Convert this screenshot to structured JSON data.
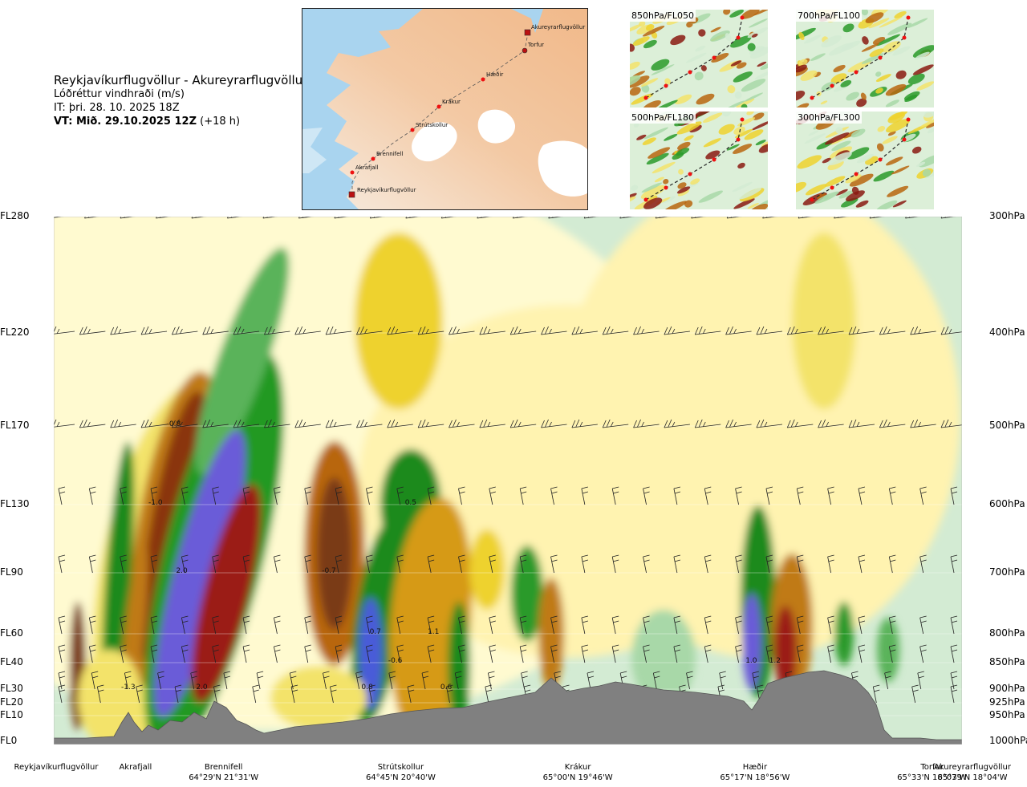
{
  "header": {
    "route": "Reykjavíkurflugvöllur - Akureyrarflugvöllur",
    "quantity": "Lóðréttur vindhraði (m/s)",
    "issue_time": "IT: þri. 28. 10. 2025 18Z",
    "valid_label": "VT: Mið. 29.10.2025 12Z",
    "valid_offset": "(+18 h)"
  },
  "map": {
    "points": [
      {
        "name": "Akureyrarflugvöllur"
      },
      {
        "name": "Torfur"
      },
      {
        "name": "Hæðir"
      },
      {
        "name": "Krákur"
      },
      {
        "name": "Strútskollur"
      },
      {
        "name": "Brennifell"
      },
      {
        "name": "Akrafjall"
      },
      {
        "name": "Reykjavíkurflugvöllur"
      }
    ]
  },
  "thumbnails": [
    {
      "label": "850hPa/FL050"
    },
    {
      "label": "700hPa/FL100"
    },
    {
      "label": "500hPa/FL180"
    },
    {
      "label": "300hPa/FL300"
    }
  ],
  "chart_data": {
    "type": "heatmap",
    "variable": "vertical wind speed",
    "unit": "m/s",
    "levels_left": [
      {
        "label": "FL280",
        "hpa": 300
      },
      {
        "label": "FL220",
        "hpa": 400
      },
      {
        "label": "FL170",
        "hpa": 500
      },
      {
        "label": "FL130",
        "hpa": 600
      },
      {
        "label": "FL90",
        "hpa": 700
      },
      {
        "label": "FL60",
        "hpa": 800
      },
      {
        "label": "FL40",
        "hpa": 850
      },
      {
        "label": "FL30",
        "hpa": 900
      },
      {
        "label": "FL20",
        "hpa": 925
      },
      {
        "label": "FL10",
        "hpa": 950
      },
      {
        "label": "FL0",
        "hpa": 1000
      }
    ],
    "levels_right": [
      "300hPa",
      "400hPa",
      "500hPa",
      "600hPa",
      "700hPa",
      "800hPa",
      "850hPa",
      "900hPa",
      "925hPa",
      "950hPa",
      "1000hPa"
    ],
    "ylim_hpa": [
      1000,
      300
    ],
    "xlim_route_fraction": [
      0,
      1
    ],
    "locations": [
      {
        "name": "Reykjavíkurflugvöllur",
        "coord": "",
        "x": -0.04
      },
      {
        "name": "Akrafjall",
        "coord": "",
        "x": 0.09
      },
      {
        "name": "Brennifell",
        "coord": "64°29'N 21°31'W",
        "x": 0.187
      },
      {
        "name": "Strútskollur",
        "coord": "64°45'N 20°40'W",
        "x": 0.382
      },
      {
        "name": "Krákur",
        "coord": "65°00'N 19°46'W",
        "x": 0.577
      },
      {
        "name": "Hæðir",
        "coord": "65°17'N 18°56'W",
        "x": 0.772
      },
      {
        "name": "Torfur",
        "coord": "65°33'N 18°07'W",
        "x": 0.967
      },
      {
        "name": "Akureyrarflugvöllur",
        "coord": "65°39'N 18°04'W",
        "x": 1.03
      }
    ],
    "contour_labels": [
      {
        "text": "-0.8",
        "x": 0.132,
        "hpa": 500
      },
      {
        "text": "-1.0",
        "x": 0.112,
        "hpa": 600
      },
      {
        "text": "2.0",
        "x": 0.141,
        "hpa": 700
      },
      {
        "text": "-1.3",
        "x": 0.082,
        "hpa": 900
      },
      {
        "text": "2.0",
        "x": 0.163,
        "hpa": 900
      },
      {
        "text": "-0.7",
        "x": 0.303,
        "hpa": 700
      },
      {
        "text": "0.5",
        "x": 0.393,
        "hpa": 600
      },
      {
        "text": "0.7",
        "x": 0.354,
        "hpa": 800
      },
      {
        "text": "1.1",
        "x": 0.418,
        "hpa": 800
      },
      {
        "text": "-0.6",
        "x": 0.376,
        "hpa": 850
      },
      {
        "text": "0.8",
        "x": 0.345,
        "hpa": 900
      },
      {
        "text": "0.6",
        "x": 0.432,
        "hpa": 900
      },
      {
        "text": "1.0",
        "x": 0.768,
        "hpa": 850
      },
      {
        "text": "1.2",
        "x": 0.794,
        "hpa": 850
      }
    ],
    "legend": "none",
    "grid": true
  }
}
